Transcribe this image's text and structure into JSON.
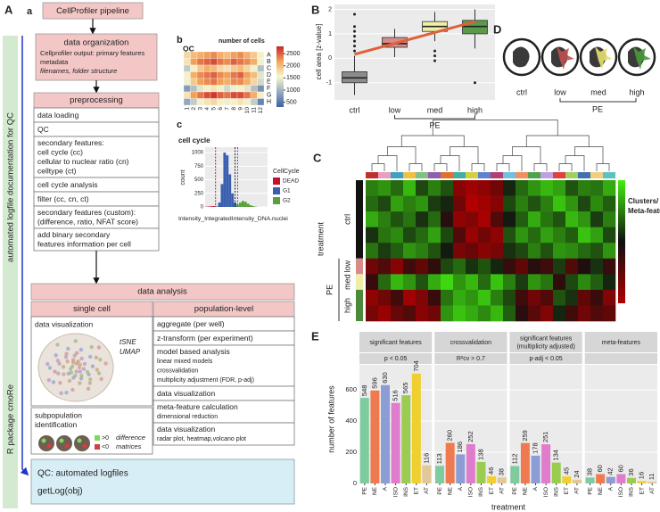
{
  "panel_a": {
    "label": "A",
    "sublabel": "a",
    "pipeline": "CellProfiler pipeline",
    "organization": {
      "title": "data organization",
      "lines": [
        "Cellprofiler output: primary features",
        "metadata",
        "filenames, folder structure"
      ]
    },
    "preprocessing": {
      "title": "preprocessing",
      "items": [
        [
          "data loading"
        ],
        [
          "QC"
        ],
        [
          "secondary features:",
          "cell cycle (cc)",
          "cellular to nuclear ratio (cn)",
          "celltype (ct)"
        ],
        [
          "cell cycle analysis"
        ],
        [
          "filter (cc, cn, ct)"
        ],
        [
          "secondary features (custom):",
          "(difference, ratio, NFAT score)"
        ],
        [
          "add binary secondary",
          "features information per cell"
        ]
      ]
    },
    "side_label": "automated logfile documentation for QC",
    "package_label": "R package cmoRe",
    "analysis": {
      "title": "data analysis",
      "single_cell": {
        "title": "single cell",
        "visualization": "data visualization",
        "methods": [
          "tSNE",
          "UMAP"
        ],
        "subpopulation": [
          "subpopulation",
          "identification"
        ],
        "legend": [
          ">0",
          "<0"
        ],
        "difference": [
          "difference",
          "matrices"
        ]
      },
      "population": {
        "title": "population-level",
        "items": [
          {
            "main": "aggregate (per well)",
            "sub": []
          },
          {
            "main": "z-transform (per experiment)",
            "sub": []
          },
          {
            "main": "model based analysis",
            "sub": [
              "linear mixed models",
              "crossvalidation",
              "multiplicity adjustment (FDR, p-adj)"
            ]
          },
          {
            "main": "data visualization",
            "sub": []
          },
          {
            "main": "meta-feature calculation",
            "sub": [
              "dimensional reduction"
            ]
          },
          {
            "main": "data visualization",
            "sub": [
              "radar plot, heatmap,volcano plot"
            ]
          }
        ]
      }
    },
    "qc": [
      "QC: automated logfiles",
      "getLog(obj)"
    ]
  },
  "panel_b": {
    "label": "b",
    "title": "QC",
    "subtitle": "number of cells",
    "type": "heatmap",
    "rows": [
      "A",
      "B",
      "C",
      "D",
      "E",
      "F",
      "G",
      "H"
    ],
    "columns": [
      "1",
      "2",
      "3",
      "4",
      "5",
      "6",
      "7",
      "8",
      "9",
      "10",
      "11",
      "12"
    ],
    "values": [
      [
        1800,
        2000,
        2100,
        2200,
        2300,
        2100,
        2000,
        2200,
        2300,
        2100,
        1900,
        1600
      ],
      [
        1700,
        2200,
        2400,
        2500,
        2600,
        2400,
        2300,
        2500,
        2400,
        2300,
        2100,
        1500
      ],
      [
        1200,
        1600,
        1900,
        2100,
        2000,
        1800,
        1700,
        1900,
        2000,
        1800,
        1500,
        1100
      ],
      [
        1600,
        2100,
        2300,
        2400,
        2500,
        2300,
        2200,
        2400,
        2500,
        2200,
        2000,
        1400
      ],
      [
        1500,
        1900,
        2200,
        2300,
        2400,
        2200,
        2100,
        2300,
        2300,
        2100,
        1800,
        1300
      ],
      [
        800,
        1100,
        1400,
        1600,
        1700,
        1500,
        1300,
        1500,
        1600,
        1400,
        1100,
        700
      ],
      [
        1700,
        2200,
        2400,
        2600,
        2700,
        2500,
        2400,
        2600,
        2600,
        2400,
        2100,
        1600
      ],
      [
        900,
        1200,
        1500,
        1700,
        1800,
        1600,
        1500,
        1600,
        1700,
        1500,
        1200,
        600
      ]
    ],
    "clim": [
      300,
      2800
    ],
    "colorbar_ticks": [
      500,
      1000,
      1500,
      2000,
      2500
    ]
  },
  "panel_c": {
    "label": "c",
    "title": "cell cycle",
    "type": "histogram",
    "ylabel": "count",
    "xlabel": "Intensity_IntegratedIntensity_DNA.nuclei",
    "bins": [
      0,
      1,
      2,
      3,
      4,
      5,
      6,
      7,
      8,
      9,
      10,
      11,
      12,
      13,
      14,
      15,
      16,
      17,
      18,
      19,
      20,
      21,
      22,
      23,
      24
    ],
    "xlim": [
      0,
      24
    ],
    "ylim": [
      0,
      1100
    ],
    "yticks": [
      0,
      250,
      500,
      750,
      1000
    ],
    "legend_title": "CellCycle",
    "series": [
      {
        "name": "DEAD",
        "color": "#c8102e",
        "values": [
          5,
          8,
          12,
          15,
          0,
          0,
          0,
          0,
          0,
          0,
          0,
          0,
          0,
          0,
          0,
          0,
          0,
          0,
          0,
          0,
          0,
          0,
          0,
          0
        ]
      },
      {
        "name": "G1",
        "color": "#3a5fb0",
        "values": [
          0,
          0,
          0,
          0,
          10,
          80,
          420,
          1000,
          950,
          600,
          250,
          80,
          0,
          0,
          0,
          0,
          0,
          0,
          0,
          0,
          0,
          0,
          0,
          0
        ]
      },
      {
        "name": "G2",
        "color": "#5aa03a",
        "values": [
          0,
          0,
          0,
          0,
          0,
          0,
          0,
          0,
          0,
          0,
          0,
          0,
          40,
          80,
          110,
          95,
          60,
          30,
          15,
          5,
          0,
          0,
          0,
          0
        ]
      }
    ],
    "thresholds": {
      "values": [
        4,
        11.5,
        12.5
      ],
      "colors": [
        "#d02020",
        "#222222",
        "#3a5fb0"
      ]
    }
  },
  "panel_B": {
    "label": "B",
    "type": "box",
    "ylabel": "cell area [z-value]",
    "categories": [
      "ctrl",
      "low",
      "med",
      "high"
    ],
    "group": "PE",
    "colors": [
      "#8c8c8c",
      "#d98a8a",
      "#eeeea6",
      "#5a9a48"
    ],
    "q1": [
      -1.0,
      0.45,
      1.1,
      1.0
    ],
    "median": [
      -0.8,
      0.6,
      1.3,
      1.3
    ],
    "q3": [
      -0.55,
      0.85,
      1.5,
      1.55
    ],
    "whisker_low": [
      -1.5,
      0.05,
      0.7,
      0.4
    ],
    "whisker_high": [
      0.1,
      1.2,
      1.9,
      2.0
    ],
    "outliers": [
      [
        0.3,
        0.5,
        0.7,
        0.9,
        1.1,
        1.3,
        1.8
      ],
      [],
      [
        0.3,
        0.1,
        -0.1
      ],
      [
        -1.0
      ]
    ],
    "trend": {
      "color": "#e0603a",
      "values": [
        0.16,
        1.5
      ]
    },
    "ylim": [
      -1.7,
      2.2
    ],
    "yticks": [
      -1,
      0,
      1,
      2
    ]
  },
  "panel_D": {
    "label": "D",
    "categories": [
      "ctrl",
      "low",
      "med",
      "high"
    ],
    "group": "PE",
    "colors": [
      "#444444",
      "#c05050",
      "#e8e070",
      "#4a9a3a"
    ]
  },
  "panel_C": {
    "label": "C",
    "type": "heatmap",
    "ylabel": "treatment",
    "group": "PE",
    "legend": [
      "Clusters/",
      "Meta-features"
    ],
    "row_groups": [
      {
        "name": "ctrl",
        "rows": 5,
        "color": "#111111"
      },
      {
        "name": "low",
        "rows": 1,
        "color": "#d98a8a"
      },
      {
        "name": "med",
        "rows": 1,
        "color": "#eeeea6"
      },
      {
        "name": "high",
        "rows": 2,
        "color": "#4a8a3a"
      }
    ],
    "cluster_colors": [
      "#c03030",
      "#e8a0c0",
      "#40a0c0",
      "#f0c040",
      "#80c080",
      "#9060b0",
      "#e07030",
      "#40b0a0",
      "#d0d040",
      "#6080d0",
      "#b04070",
      "#70c0e0",
      "#f09060",
      "#50a050",
      "#c0a0e0",
      "#e04040",
      "#a0d060",
      "#4070b0",
      "#f0d080",
      "#60c0c0"
    ],
    "clim": [
      -2,
      2
    ],
    "values": [
      [
        1,
        1.2,
        0.8,
        1.5,
        0.5,
        1,
        0.6,
        -1.5,
        -1.8,
        -1.6,
        -1.2,
        0.2,
        0.8,
        1.2,
        1.5,
        1.3,
        0.6,
        1,
        0.9,
        1.4
      ],
      [
        0.8,
        0.5,
        1.3,
        1,
        1.2,
        0.4,
        0.2,
        -1.2,
        -2,
        -1.8,
        -1.5,
        0.5,
        1,
        0.6,
        1,
        1.6,
        1.2,
        0.5,
        1.1,
        0.7
      ],
      [
        1.4,
        1,
        0.6,
        0.9,
        0.3,
        0.8,
        -0.3,
        -1.6,
        -1.4,
        -1.9,
        -0.8,
        0.1,
        0.7,
        1.4,
        0.9,
        0.6,
        1.5,
        1.2,
        0.4,
        1
      ],
      [
        0.3,
        0.9,
        1.1,
        0.5,
        0.8,
        1.3,
        0.5,
        -0.8,
        -1.7,
        -1.2,
        -1.6,
        0.6,
        1.2,
        0.8,
        1.3,
        1,
        0.7,
        1.6,
        1.3,
        0.5
      ],
      [
        0.9,
        0.4,
        0.7,
        1.2,
        1,
        0.6,
        0.1,
        -1.3,
        -1.1,
        -1.5,
        -1.3,
        0.3,
        0.5,
        1,
        0.6,
        1.2,
        1.1,
        0.8,
        0.6,
        1.2
      ],
      [
        -1.2,
        -0.8,
        -1.5,
        -0.6,
        -1,
        -0.4,
        0.5,
        0.8,
        0.3,
        0.6,
        0.2,
        -0.5,
        -1,
        -0.3,
        -0.6,
        0.4,
        -0.8,
        -0.2,
        0.3,
        -0.5
      ],
      [
        -0.5,
        0.8,
        1.5,
        1.2,
        0.6,
        1.4,
        1.8,
        1.2,
        1.5,
        0.8,
        1.6,
        1,
        0.4,
        1.2,
        0.9,
        -0.4,
        0.5,
        1.1,
        0.7,
        0.2
      ],
      [
        -1.6,
        -1.2,
        -0.6,
        -1.8,
        -1.4,
        -0.5,
        0.9,
        1.4,
        1.2,
        1.6,
        1,
        0.5,
        -0.6,
        -1.2,
        -0.8,
        0.6,
        0.3,
        -1,
        -0.5,
        -1.4
      ],
      [
        -1.3,
        -1.7,
        -1.1,
        -0.8,
        -1.5,
        -1.2,
        1.2,
        1.6,
        1.4,
        1.1,
        1.5,
        0.7,
        -0.3,
        -0.9,
        -1.4,
        0.2,
        -0.6,
        -1.2,
        -0.8,
        -1
      ]
    ]
  },
  "panel_E": {
    "label": "E",
    "type": "bar",
    "ylabel": "number of features",
    "xlabel": "treatment",
    "categories": [
      "PE",
      "NE",
      "A",
      "ISO",
      "INS",
      "ET",
      "AT"
    ],
    "colors": [
      "#7fcba0",
      "#f07a50",
      "#8c9cd4",
      "#e07ccc",
      "#9acc50",
      "#f0d030",
      "#e2c898"
    ],
    "ylim": [
      0,
      760
    ],
    "yticks": [
      0,
      200,
      400,
      600
    ],
    "facets": [
      {
        "title": [
          "significant features"
        ],
        "subtitle": "p < 0.05",
        "values": [
          548,
          596,
          630,
          516,
          565,
          704,
          116
        ]
      },
      {
        "title": [
          "crossvalidation"
        ],
        "subtitle": "R²cv > 0.7",
        "values": [
          113,
          260,
          186,
          252,
          138,
          46,
          38
        ]
      },
      {
        "title": [
          "significant features",
          "(multiplicity adjusted)"
        ],
        "subtitle": "p-adj < 0.05",
        "values": [
          112,
          259,
          178,
          251,
          134,
          45,
          24
        ]
      },
      {
        "title": [
          "meta-features"
        ],
        "values": [
          38,
          60,
          42,
          60,
          36,
          16,
          11
        ]
      }
    ]
  }
}
